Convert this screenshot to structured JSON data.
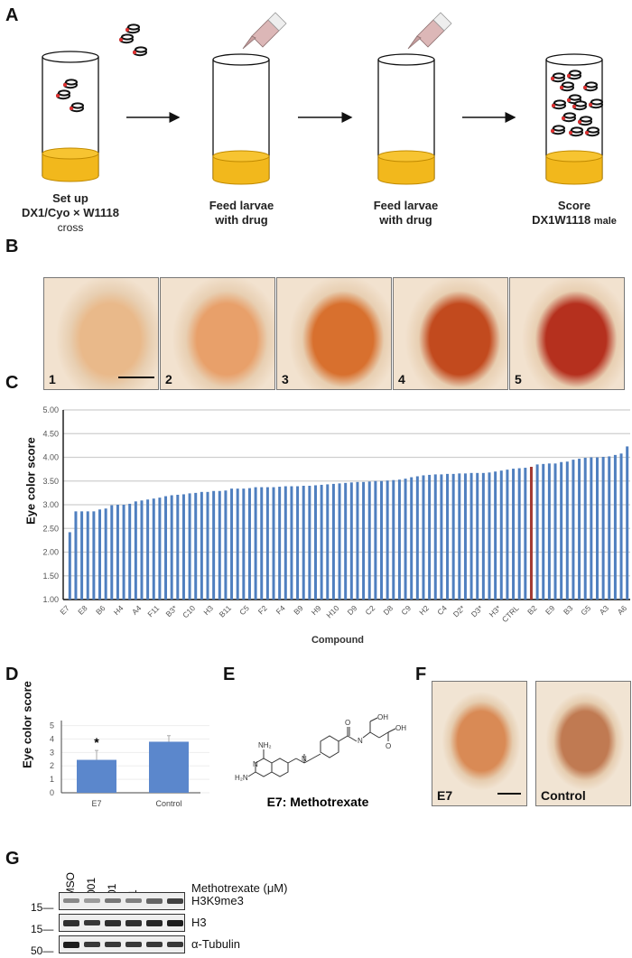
{
  "panels": {
    "A": {
      "letter": "A",
      "steps": [
        {
          "line1": "Set up",
          "line2": "DX1/Cyo × W1118",
          "line3": "cross"
        },
        {
          "line1": "Feed larvae",
          "line2": "with drug",
          "line3": ""
        },
        {
          "line1": "Feed larvae",
          "line2": "with drug",
          "line3": ""
        },
        {
          "line1": "Score",
          "line2": "DX1W1118",
          "line2_small": "male",
          "line3": ""
        }
      ],
      "colors": {
        "food": "#f2b81c",
        "food_edge": "#c08a00",
        "pipette": "#d9b0b0",
        "fly_eye": "#e03030"
      }
    },
    "B": {
      "letter": "B",
      "images": [
        {
          "label": "1",
          "eye_color": "#e9b98a"
        },
        {
          "label": "2",
          "eye_color": "#e8a06a"
        },
        {
          "label": "3",
          "eye_color": "#d8702e"
        },
        {
          "label": "4",
          "eye_color": "#c24a1e"
        },
        {
          "label": "5",
          "eye_color": "#b5301e"
        }
      ]
    },
    "C": {
      "letter": "C"
    },
    "D": {
      "letter": "D"
    },
    "E": {
      "letter": "E",
      "caption": "E7: Methotrexate",
      "atoms": {
        "nh2_top": "NH₂",
        "h2n": "H₂N",
        "n": "N",
        "nh": "N\nH",
        "o": "O",
        "oh": "OH"
      }
    },
    "F": {
      "letter": "F",
      "images": [
        {
          "label": "E7",
          "eye_color": "#d98a55"
        },
        {
          "label": "Control",
          "eye_color": "#c07a52"
        }
      ]
    },
    "G": {
      "letter": "G",
      "lanes": [
        "DMSO",
        "0.001",
        "0.01",
        "0.1",
        "1",
        "10"
      ],
      "treatment_label": "Methotrexate (μM)",
      "blots": [
        {
          "name": "H3K9me3",
          "marker": "15",
          "band_intensity": [
            0.35,
            0.25,
            0.45,
            0.4,
            0.55,
            0.75
          ]
        },
        {
          "name": "H3",
          "marker": "15",
          "band_intensity": [
            0.85,
            0.8,
            0.85,
            0.85,
            0.9,
            0.95
          ]
        },
        {
          "name": "α-Tubulin",
          "marker": "50",
          "band_intensity": [
            0.95,
            0.8,
            0.8,
            0.8,
            0.8,
            0.8
          ]
        }
      ]
    }
  },
  "chart_data": [
    {
      "id": "C",
      "type": "bar",
      "title": "",
      "xlabel": "Compound",
      "ylabel": "Eye color score",
      "ylim": [
        1.0,
        5.0
      ],
      "yticks": [
        "1.00",
        "1.50",
        "2.00",
        "2.50",
        "3.00",
        "3.50",
        "4.00",
        "4.50",
        "5.00"
      ],
      "grid": true,
      "bar_color": "#4f7fbf",
      "highlight_color": "#a23a32",
      "highlight_category": "CTRL",
      "tick_labels": [
        "E7",
        "E8",
        "B6",
        "H4",
        "A4",
        "F11",
        "B3*",
        "C10",
        "H3",
        "B11",
        "C5",
        "F2",
        "F4",
        "B9",
        "H9",
        "H10",
        "D9",
        "C2",
        "D8",
        "C9",
        "H2",
        "C4",
        "D2*",
        "D3*",
        "H3*",
        "CTRL",
        "B2",
        "E9",
        "B3",
        "G5",
        "A3",
        "A6",
        "F3"
      ],
      "tick_every": 3,
      "values": [
        2.42,
        2.86,
        2.86,
        2.86,
        2.86,
        2.9,
        2.92,
        2.99,
        3.0,
        3.0,
        3.02,
        3.07,
        3.09,
        3.11,
        3.13,
        3.15,
        3.18,
        3.2,
        3.21,
        3.22,
        3.24,
        3.25,
        3.27,
        3.27,
        3.29,
        3.29,
        3.3,
        3.34,
        3.34,
        3.34,
        3.35,
        3.37,
        3.37,
        3.37,
        3.37,
        3.38,
        3.39,
        3.39,
        3.39,
        3.4,
        3.4,
        3.41,
        3.42,
        3.43,
        3.44,
        3.45,
        3.46,
        3.47,
        3.48,
        3.48,
        3.49,
        3.5,
        3.5,
        3.51,
        3.52,
        3.53,
        3.55,
        3.58,
        3.6,
        3.62,
        3.63,
        3.64,
        3.64,
        3.65,
        3.65,
        3.66,
        3.66,
        3.67,
        3.67,
        3.67,
        3.68,
        3.7,
        3.72,
        3.74,
        3.76,
        3.77,
        3.78,
        3.8,
        3.85,
        3.86,
        3.87,
        3.87,
        3.9,
        3.91,
        3.95,
        3.97,
        3.99,
        4.0,
        4.0,
        4.01,
        4.02,
        4.05,
        4.08,
        4.23
      ],
      "highlight_index": 77
    },
    {
      "id": "D",
      "type": "bar",
      "title": "",
      "xlabel": "",
      "ylabel": "Eye color score",
      "ylim": [
        0,
        5
      ],
      "yticks": [
        "0",
        "1",
        "2",
        "3",
        "4",
        "5"
      ],
      "grid": true,
      "categories": [
        "E7",
        "Control"
      ],
      "values": [
        2.45,
        3.8
      ],
      "errors": [
        0.7,
        0.45
      ],
      "annotations": [
        "*",
        ""
      ],
      "bar_color": "#5b87cc"
    }
  ]
}
